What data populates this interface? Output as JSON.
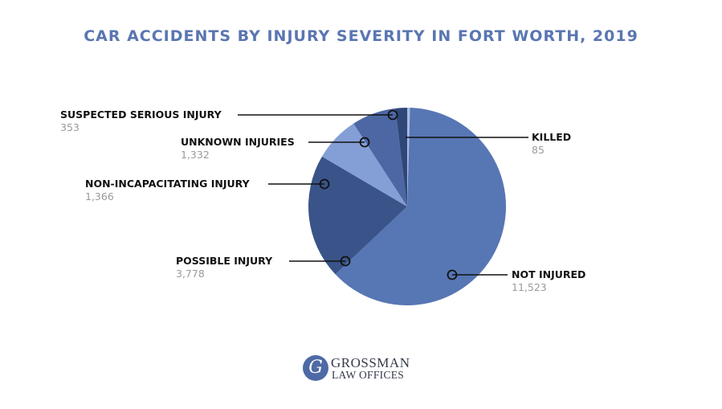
{
  "chart_data": {
    "type": "pie",
    "title": "CAR ACCIDENTS BY INJURY SEVERITY IN FORT WORTH, 2019",
    "slices": [
      {
        "label": "NOT INJURED",
        "value": 11523,
        "value_text": "11,523",
        "color": "#5776b4"
      },
      {
        "label": "POSSIBLE INJURY",
        "value": 3778,
        "value_text": "3,778",
        "color": "#3a5489"
      },
      {
        "label": "NON-INCAPACITATING INJURY",
        "value": 1366,
        "value_text": "1,366",
        "color": "#849fd6"
      },
      {
        "label": "UNKNOWN INJURIES",
        "value": 1332,
        "value_text": "1,332",
        "color": "#4c67a3"
      },
      {
        "label": "SUSPECTED SERIOUS INJURY",
        "value": 353,
        "value_text": "353",
        "color": "#2f4678"
      },
      {
        "label": "KILLED",
        "value": 85,
        "value_text": "85",
        "color": "#a7bbe3"
      }
    ],
    "legend": "none"
  },
  "logo": {
    "mark": "G",
    "line1": "GROSSMAN",
    "line2": "LAW OFFICES"
  }
}
